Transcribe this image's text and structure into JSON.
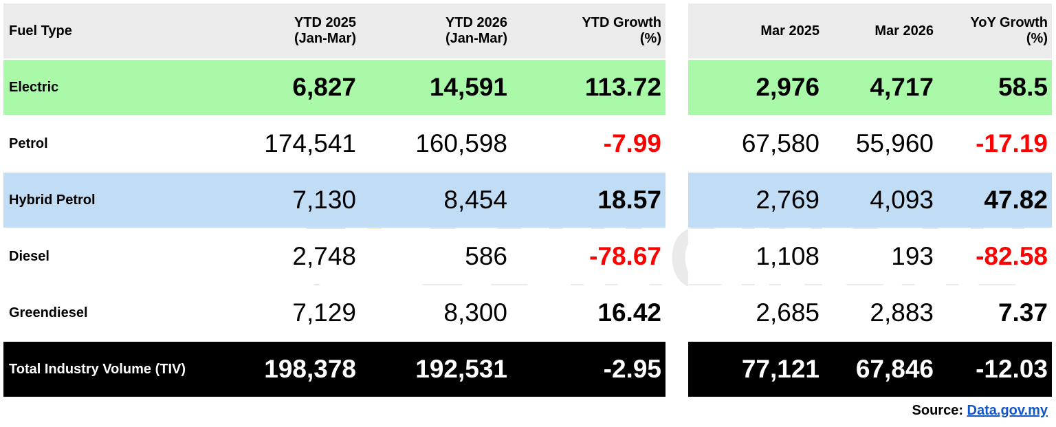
{
  "table": {
    "headers": [
      [
        "Fuel Type"
      ],
      [
        "YTD 2025",
        "(Jan-Mar)"
      ],
      [
        "YTD 2026",
        "(Jan-Mar)"
      ],
      [
        "YTD Growth",
        "(%)"
      ],
      [
        "Mar 2025"
      ],
      [
        "Mar 2026"
      ],
      [
        "YoY Growth",
        "(%)"
      ]
    ],
    "rows": [
      [
        "Electric",
        "6,827",
        "14,591",
        "113.72",
        "2,976",
        "4,717",
        "58.5"
      ],
      [
        "Petrol",
        "174,541",
        "160,598",
        "-7.99",
        "67,580",
        "55,960",
        "-17.19"
      ],
      [
        "Hybrid Petrol",
        "7,130",
        "8,454",
        "18.57",
        "2,769",
        "4,093",
        "47.82"
      ],
      [
        "Diesel",
        "2,748",
        "586",
        "-78.67",
        "1,108",
        "193",
        "-82.58"
      ],
      [
        "Greendiesel",
        "7,129",
        "8,300",
        "16.42",
        "2,685",
        "2,883",
        "7.37"
      ],
      [
        "Total Industry Volume (TIV)",
        "198,378",
        "192,531",
        "-2.95",
        "77,121",
        "67,846",
        "-12.03"
      ]
    ]
  },
  "watermark": "SOYACINCAU",
  "source": {
    "label": "Source:",
    "link": "Data.gov.my"
  }
}
